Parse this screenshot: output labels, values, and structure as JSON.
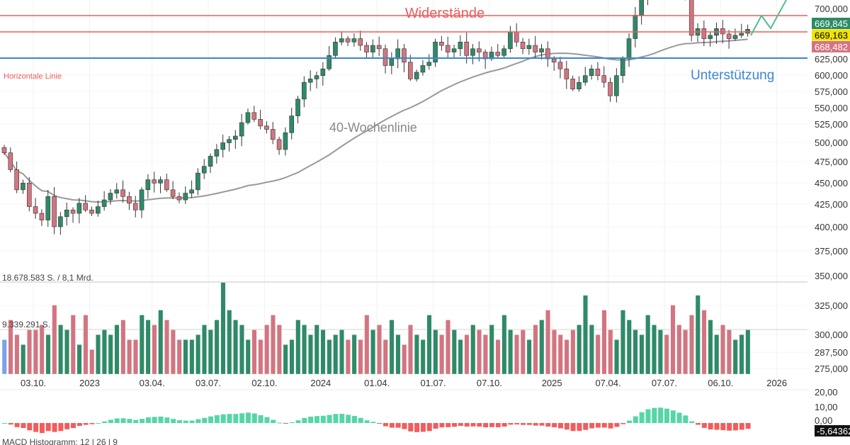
{
  "chart_data": {
    "type": "candlestick",
    "title": "",
    "annotations": {
      "resistance": "Widerstände",
      "support": "Unterstützung",
      "horizontal_line": "Horizontale Linie",
      "ma_label": "40-Wochenlinie"
    },
    "resistance_levels": [
      700000,
      676000
    ],
    "support_level": 636000,
    "price_ticks": [
      "700,000",
      "625,000",
      "600,000",
      "575,000",
      "550,000",
      "525,000",
      "500,000",
      "475,000",
      "450,000",
      "425,000",
      "400,000",
      "375,000",
      "350,000",
      "325,000",
      "300,000",
      "287,500",
      "275,000"
    ],
    "price_tick_values": [
      700,
      625,
      600,
      575,
      550,
      525,
      500,
      475,
      450,
      425,
      400,
      375,
      350,
      325,
      300,
      287.5,
      275
    ],
    "price_badges": [
      {
        "value": "669,845",
        "bg": "#2f8a68",
        "fg": "#ffffff"
      },
      {
        "value": "669,163",
        "bg": "#f2e400",
        "fg": "#000000"
      },
      {
        "value": "668,482",
        "bg": "#d27580",
        "fg": "#ffffff"
      }
    ],
    "x_ticks": [
      "03.10.",
      "2023",
      "03.04.",
      "03.07.",
      "02.10.",
      "2024",
      "01.04.",
      "01.07.",
      "07.10.",
      "2025",
      "07.04.",
      "07.07.",
      "06.10.",
      "2026"
    ],
    "x_tick_index": [
      5,
      14,
      24,
      33,
      42,
      51,
      60,
      69,
      78,
      88,
      97,
      106,
      115,
      124
    ],
    "closes": [
      485,
      460,
      430,
      440,
      405,
      395,
      385,
      420,
      375,
      390,
      400,
      395,
      410,
      400,
      395,
      405,
      415,
      425,
      430,
      420,
      410,
      400,
      430,
      445,
      440,
      445,
      430,
      420,
      415,
      425,
      430,
      455,
      465,
      480,
      490,
      500,
      505,
      510,
      530,
      545,
      535,
      525,
      520,
      505,
      490,
      515,
      540,
      565,
      590,
      595,
      600,
      610,
      630,
      650,
      655,
      650,
      655,
      645,
      635,
      645,
      640,
      615,
      625,
      640,
      620,
      595,
      605,
      615,
      620,
      650,
      645,
      635,
      640,
      650,
      630,
      640,
      635,
      625,
      635,
      630,
      640,
      665,
      650,
      640,
      645,
      635,
      640,
      625,
      620,
      610,
      595,
      580,
      590,
      600,
      610,
      600,
      590,
      570,
      600,
      625,
      655,
      690,
      720,
      735,
      740,
      745,
      740,
      735,
      730,
      720,
      660,
      670,
      655,
      660,
      670,
      662,
      655,
      660,
      663,
      669
    ],
    "volume_label_max": "18.678.583 S. / 8,1 Mrd.",
    "volume_label_avg": "9.339.291 S.",
    "volume_max": 18.68,
    "volumes": [
      7,
      11,
      8,
      6,
      9,
      9,
      10,
      8,
      14,
      10,
      9,
      12,
      6,
      12,
      5,
      8,
      9,
      8,
      10,
      11,
      7,
      7,
      12,
      11,
      10,
      13,
      11,
      9,
      7,
      7,
      7,
      8,
      10,
      9,
      11,
      18.6,
      13,
      11,
      10,
      7,
      9,
      7,
      10,
      12,
      10,
      6,
      7,
      11,
      10,
      8,
      10,
      9,
      7,
      8,
      9,
      7,
      8,
      7,
      12,
      9,
      10,
      7,
      11,
      8,
      6,
      10,
      8,
      7,
      12,
      9,
      8,
      11,
      9,
      7,
      8,
      10,
      9,
      8,
      10,
      7,
      12,
      9,
      8,
      9,
      7,
      10,
      11,
      13,
      9,
      8,
      7,
      9,
      10,
      16,
      10,
      8,
      13,
      9,
      7,
      13,
      11,
      9,
      8,
      12,
      10,
      9,
      8,
      14,
      10,
      9,
      12,
      16,
      13,
      11,
      8,
      10,
      9,
      7,
      8,
      9
    ],
    "macd_label": "MACD Histogramm: 12 | 26 | 9",
    "macd_ticks": [
      "20,00",
      "10,00",
      "0,00"
    ],
    "macd_tick_values": [
      20,
      10,
      0
    ],
    "macd_last": "-5,64362",
    "colors": {
      "up": "#2f8a68",
      "down": "#d27580",
      "ma": "#999999",
      "resistance": "#f05a5a",
      "support": "#3b86d6",
      "macd_pos": "#55d6a6",
      "macd_neg": "#f25c5c",
      "projection": "#4fbf8f"
    }
  }
}
